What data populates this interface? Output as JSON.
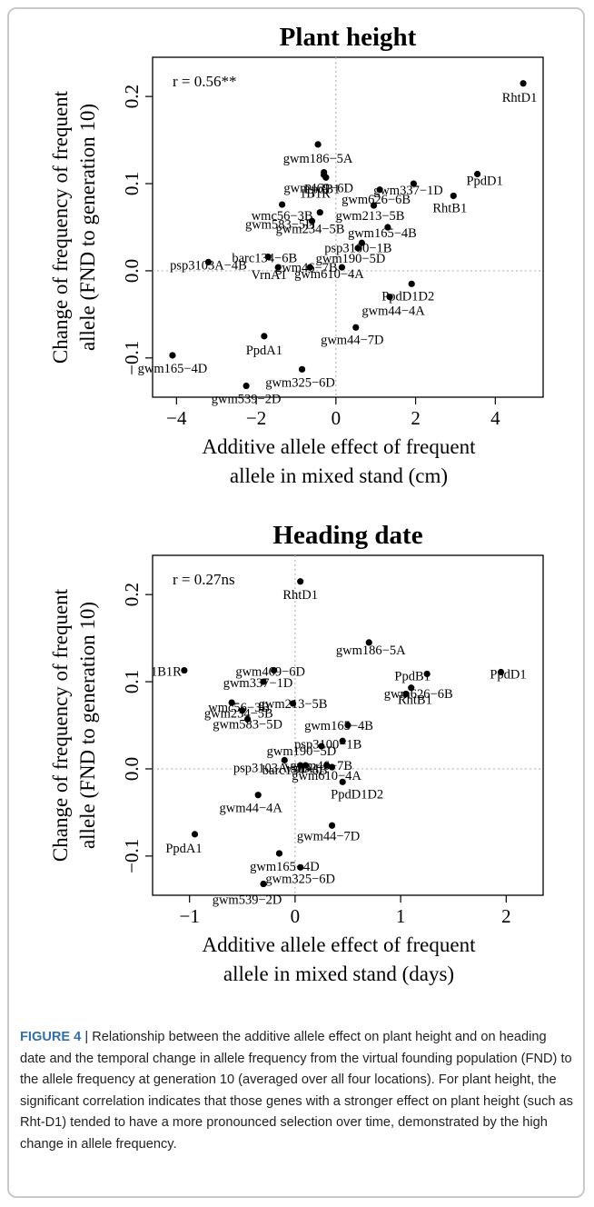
{
  "chart_data": [
    {
      "type": "scatter",
      "title": "Plant height",
      "xlabel": "Additive allele effect of frequent allele in mixed stand (cm)",
      "xlabel_lines": [
        "Additive allele effect of frequent",
        "allele in mixed stand (cm)"
      ],
      "ylabel": "Change of frequency of frequent allele (FND to generation 10)",
      "ylabel_lines": [
        "Change of frequency of frequent",
        "allele (FND to generation 10)"
      ],
      "correlation_text": "r = 0.56**",
      "xlim": [
        -4.6,
        5.2
      ],
      "ylim": [
        -0.145,
        0.245
      ],
      "xticks": [
        -4,
        -2,
        0,
        2,
        4
      ],
      "xtick_labels": [
        "−4",
        "−2",
        "0",
        "2",
        "4"
      ],
      "yticks": [
        -0.1,
        0.0,
        0.1,
        0.2
      ],
      "ytick_labels": [
        "−0.1",
        "0.0",
        "0.1",
        "0.2"
      ],
      "reference_lines": {
        "x": 0,
        "y": 0
      },
      "points": [
        {
          "label": "RhtD1",
          "x": 4.7,
          "y": 0.215
        },
        {
          "label": "gwm186−5A",
          "x": -0.45,
          "y": 0.145
        },
        {
          "label": "gwm469−6D",
          "x": -0.3,
          "y": 0.11
        },
        {
          "label": "1B1R",
          "x": -0.25,
          "y": 0.107
        },
        {
          "label": "PpdB1",
          "x": -0.3,
          "y": 0.113
        },
        {
          "label": "PpdD1",
          "x": 3.55,
          "y": 0.111
        },
        {
          "label": "gwm337−1D",
          "x": 1.95,
          "y": 0.1
        },
        {
          "label": "RhtB1",
          "x": 2.95,
          "y": 0.086
        },
        {
          "label": "gwm626−6B",
          "x": 1.1,
          "y": 0.093
        },
        {
          "label": "wmc56−3B",
          "x": -1.35,
          "y": 0.076
        },
        {
          "label": "gwm213−5B",
          "x": 0.95,
          "y": 0.075
        },
        {
          "label": "gwm234−5B",
          "x": -0.6,
          "y": 0.057
        },
        {
          "label": "gwm583−5D",
          "x": -0.4,
          "y": 0.067
        },
        {
          "label": "gwm165−4B",
          "x": 1.3,
          "y": 0.05
        },
        {
          "label": "psp3100−1B",
          "x": 0.65,
          "y": 0.032
        },
        {
          "label": "gwm190−5D",
          "x": 0.55,
          "y": 0.026
        },
        {
          "label": "psp3103A−4B",
          "x": -3.2,
          "y": 0.01
        },
        {
          "label": "barc134−6B",
          "x": -1.7,
          "y": 0.016
        },
        {
          "label": "VrnA1",
          "x": -1.45,
          "y": 0.004
        },
        {
          "label": "gwm46−7B",
          "x": -0.65,
          "y": 0.004
        },
        {
          "label": "gwm610−4A",
          "x": 0.15,
          "y": 0.004
        },
        {
          "label": "PpdD1D2",
          "x": 1.9,
          "y": -0.015
        },
        {
          "label": "gwm44−4A",
          "x": 1.35,
          "y": -0.03
        },
        {
          "label": "gwm44−7D",
          "x": 0.5,
          "y": -0.065
        },
        {
          "label": "PpdA1",
          "x": -1.8,
          "y": -0.075
        },
        {
          "label": "gwm165−4D",
          "x": -4.1,
          "y": -0.097
        },
        {
          "label": "gwm325−6D",
          "x": -0.85,
          "y": -0.113
        },
        {
          "label": "gwm539−2D",
          "x": -2.25,
          "y": -0.132
        }
      ]
    },
    {
      "type": "scatter",
      "title": "Heading date",
      "xlabel": "Additive allele effect of frequent allele in mixed stand (days)",
      "xlabel_lines": [
        "Additive allele effect of frequent",
        "allele in mixed stand (days)"
      ],
      "ylabel": "Change of frequency of frequent allele (FND to generation 10)",
      "ylabel_lines": [
        "Change of frequency of frequent",
        "allele (FND to generation 10)"
      ],
      "correlation_text": "r = 0.27ns",
      "xlim": [
        -1.35,
        2.35
      ],
      "ylim": [
        -0.145,
        0.245
      ],
      "xticks": [
        -1,
        0,
        1,
        2
      ],
      "xtick_labels": [
        "−1",
        "0",
        "1",
        "2"
      ],
      "yticks": [
        -0.1,
        0.0,
        0.1,
        0.2
      ],
      "ytick_labels": [
        "−0.1",
        "0.0",
        "0.1",
        "0.2"
      ],
      "reference_lines": {
        "x": 0,
        "y": 0
      },
      "points": [
        {
          "label": "RhtD1",
          "x": 0.05,
          "y": 0.215
        },
        {
          "label": "gwm186−5A",
          "x": 0.7,
          "y": 0.145
        },
        {
          "label": "1B1R",
          "x": -1.05,
          "y": 0.113
        },
        {
          "label": "gwm469−6D",
          "x": -0.2,
          "y": 0.113
        },
        {
          "label": "PpdB1",
          "x": 1.25,
          "y": 0.109
        },
        {
          "label": "PpdD1",
          "x": 1.95,
          "y": 0.111
        },
        {
          "label": "gwm337−1D",
          "x": -0.3,
          "y": 0.1
        },
        {
          "label": "gwm626−6B",
          "x": 1.1,
          "y": 0.093
        },
        {
          "label": "RhtB1",
          "x": 1.05,
          "y": 0.086
        },
        {
          "label": "wmc56−3B",
          "x": -0.6,
          "y": 0.076
        },
        {
          "label": "gwm213−5B",
          "x": -0.02,
          "y": 0.075
        },
        {
          "label": "gwm234−5B",
          "x": -0.5,
          "y": 0.067
        },
        {
          "label": "gwm583−5D",
          "x": -0.45,
          "y": 0.057
        },
        {
          "label": "gwm165−4B",
          "x": 0.5,
          "y": 0.05
        },
        {
          "label": "psp3100−1B",
          "x": 0.45,
          "y": 0.032
        },
        {
          "label": "gwm190−5D",
          "x": 0.25,
          "y": 0.026
        },
        {
          "label": "psp3103A−4B",
          "x": -0.1,
          "y": 0.01
        },
        {
          "label": "barc134−6B",
          "x": 0.05,
          "y": 0.004
        },
        {
          "label": "VrnA1",
          "x": 0.1,
          "y": 0.004
        },
        {
          "label": "gwm46−7B",
          "x": 0.3,
          "y": 0.004
        },
        {
          "label": "gwm610−4A",
          "x": 0.35,
          "y": 0.002
        },
        {
          "label": "PpdD1D2",
          "x": 0.45,
          "y": -0.015
        },
        {
          "label": "gwm44−4A",
          "x": -0.35,
          "y": -0.03
        },
        {
          "label": "gwm44−7D",
          "x": 0.35,
          "y": -0.065
        },
        {
          "label": "PpdA1",
          "x": -0.95,
          "y": -0.075
        },
        {
          "label": "gwm165−4D",
          "x": -0.15,
          "y": -0.097
        },
        {
          "label": "gwm325−6D",
          "x": 0.05,
          "y": -0.113
        },
        {
          "label": "gwm539−2D",
          "x": -0.3,
          "y": -0.132
        }
      ]
    }
  ],
  "caption": {
    "figure_label": "FIGURE 4",
    "separator": " | ",
    "text": "Relationship between the additive allele effect on plant height and on heading date and the temporal change in allele frequency from the virtual founding population (FND) to the allele frequency at generation 10 (averaged over all four locations). For plant height, the significant correlation indicates that those genes with a stronger effect on plant height (such as Rht-D1) tended to have a more pronounced selection over time, demonstrated by the high change in allele frequency."
  }
}
